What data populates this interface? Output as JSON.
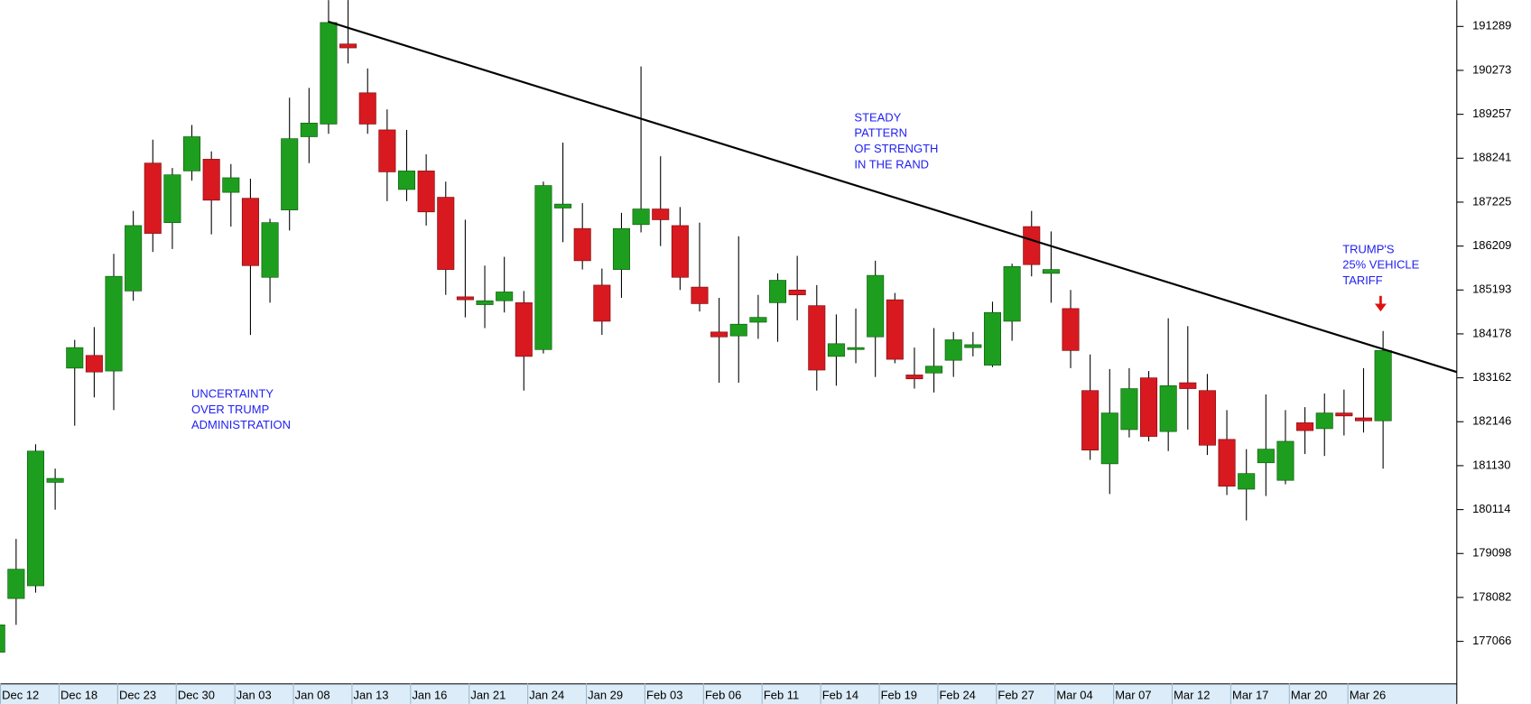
{
  "chart_data": {
    "type": "candlestick",
    "categories": [
      null,
      "Dec 12",
      null,
      null,
      "Dec 18",
      null,
      null,
      "Dec 23",
      null,
      null,
      "Dec 30",
      null,
      null,
      "Jan 03",
      null,
      null,
      "Jan 08",
      null,
      null,
      "Jan 13",
      null,
      null,
      "Jan 16",
      null,
      null,
      "Jan 21",
      null,
      null,
      "Jan 24",
      null,
      null,
      "Jan 29",
      null,
      null,
      "Feb 03",
      null,
      null,
      "Feb 06",
      null,
      null,
      "Feb 11",
      null,
      null,
      "Feb 14",
      null,
      null,
      "Feb 19",
      null,
      null,
      "Feb 24",
      null,
      null,
      "Feb 27",
      null,
      null,
      "Mar 04",
      null,
      null,
      "Mar 07",
      null,
      null,
      "Mar 12",
      null,
      null,
      "Mar 17",
      null,
      null,
      "Mar 20",
      null,
      null,
      "Mar 26",
      null
    ],
    "open": [
      176815,
      178057,
      178351,
      180744,
      183386,
      183680,
      183319,
      185170,
      188128,
      186751,
      187947,
      188218,
      187451,
      187315,
      185486,
      187044,
      188738,
      189031,
      190883,
      189754,
      188896,
      187518,
      187947,
      187338,
      185035,
      184854,
      184944,
      184899,
      183815,
      187089,
      186615,
      185306,
      185667,
      186706,
      187067,
      186683,
      185260,
      184222,
      184131,
      184448,
      184899,
      185193,
      184831,
      183657,
      183838,
      184109,
      184967,
      183228,
      183273,
      183567,
      183861,
      183454,
      184470,
      186660,
      185577,
      184764,
      182867,
      181173,
      181964,
      183161,
      181919,
      183048,
      182867,
      181738,
      180586,
      181196,
      180790,
      182122,
      181986,
      182348,
      182235,
      182167
    ],
    "high": [
      177493,
      179435,
      181625,
      181061,
      184041,
      184335,
      186028,
      187022,
      188670,
      188015,
      189009,
      188399,
      188106,
      187767,
      186841,
      189641,
      189867,
      191899,
      191899,
      190318,
      189370,
      188896,
      188331,
      187699,
      186818,
      185757,
      185960,
      185170,
      187699,
      188602,
      187202,
      185689,
      186977,
      190364,
      188286,
      187112,
      186751,
      185012,
      186435,
      185080,
      185577,
      185983,
      185306,
      184628,
      184764,
      185870,
      185125,
      183861,
      184312,
      184222,
      184222,
      184922,
      185802,
      187022,
      186548,
      185193,
      183702,
      183364,
      183386,
      183319,
      184538,
      184357,
      183251,
      182415,
      181512,
      182777,
      182415,
      182483,
      182799,
      182890,
      183386,
      184244
    ],
    "low": [
      176770,
      177448,
      178193,
      180112,
      182054,
      182709,
      182415,
      184944,
      186073,
      186141,
      187722,
      186480,
      186660,
      184154,
      184899,
      186570,
      188128,
      188806,
      190431,
      188806,
      187248,
      187248,
      186683,
      185080,
      184560,
      184312,
      184673,
      182867,
      183725,
      186299,
      185667,
      184154,
      185012,
      186525,
      186209,
      185193,
      184696,
      183048,
      183048,
      184064,
      183996,
      184493,
      182867,
      182980,
      183499,
      183183,
      183499,
      182912,
      182822,
      183183,
      183657,
      183409,
      184019,
      185509,
      184899,
      183386,
      181264,
      180474,
      181783,
      181693,
      181467,
      181964,
      181377,
      180451,
      179864,
      180428,
      180699,
      181399,
      181354,
      181828,
      181896,
      181061
    ],
    "close": [
      177448,
      178735,
      181467,
      180835,
      183861,
      183296,
      185509,
      186683,
      186502,
      187857,
      188738,
      187270,
      187789,
      185757,
      186751,
      188693,
      189054,
      191380,
      190793,
      189031,
      187925,
      187947,
      186999,
      185667,
      184967,
      184944,
      185148,
      183657,
      187609,
      187180,
      185870,
      184470,
      186615,
      187067,
      186818,
      185486,
      184877,
      184109,
      184402,
      184560,
      185418,
      185080,
      183341,
      183951,
      183861,
      185531,
      183590,
      183138,
      183431,
      184041,
      183928,
      184673,
      185735,
      185780,
      185667,
      183793,
      181490,
      182348,
      182912,
      181806,
      182980,
      182912,
      181603,
      180654,
      180948,
      181512,
      181693,
      181941,
      182348,
      182280,
      182167,
      183793
    ],
    "up_color": "#1e9e1e",
    "down_color": "#d81920",
    "ylim": [
      176093,
      191899
    ],
    "yticks": [
      191289,
      190273,
      189257,
      188241,
      187225,
      186209,
      185193,
      184178,
      183162,
      182146,
      181130,
      180114,
      179098,
      178082,
      177066
    ],
    "annotations": [
      [
        "UNCERTAINTY",
        "OVER TRUMP",
        "ADMINISTRATION"
      ],
      [
        "STEADY",
        "PATTERN",
        "OF STRENGTH",
        "IN THE RAND"
      ],
      [
        "TRUMP'S",
        "25% VEHICLE",
        "TARIFF"
      ]
    ]
  }
}
